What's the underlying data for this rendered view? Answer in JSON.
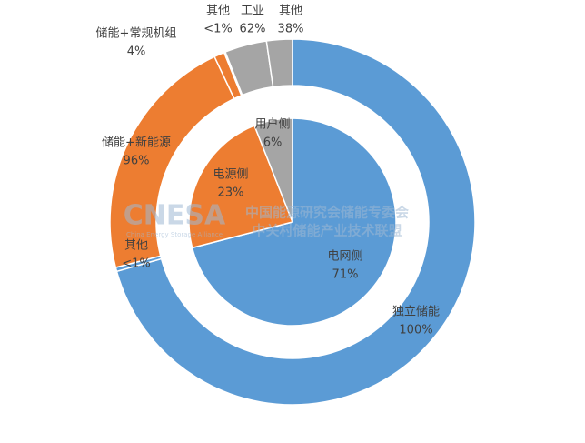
{
  "chart_data": {
    "type": "nested_pie",
    "watermark": {
      "logo": "CNESA",
      "line1": "中国能源研究会储能专委会",
      "line2": "中关村储能产业技术联盟",
      "tagline": "China Energy Storage Alliance"
    },
    "segments": [
      {
        "name": "电网侧",
        "value": 71,
        "value_label": "71%",
        "color": "#5b9bd5",
        "children": [
          {
            "name": "独立储能",
            "value": 100,
            "value_label": "100%"
          },
          {
            "name": "其他",
            "value": 0.5,
            "value_label": "<1%"
          }
        ]
      },
      {
        "name": "电源侧",
        "value": 23,
        "value_label": "23%",
        "color": "#ed7d31",
        "children": [
          {
            "name": "储能+新能源",
            "value": 96,
            "value_label": "96%"
          },
          {
            "name": "储能+常规机组",
            "value": 4,
            "value_label": "4%"
          },
          {
            "name": "其他",
            "value": 0.5,
            "value_label": "<1%"
          }
        ]
      },
      {
        "name": "用户侧",
        "value": 6,
        "value_label": "6%",
        "color": "#a5a5a5",
        "children": [
          {
            "name": "工业",
            "value": 62,
            "value_label": "62%"
          },
          {
            "name": "其他",
            "value": 38,
            "value_label": "38%"
          }
        ]
      }
    ]
  }
}
